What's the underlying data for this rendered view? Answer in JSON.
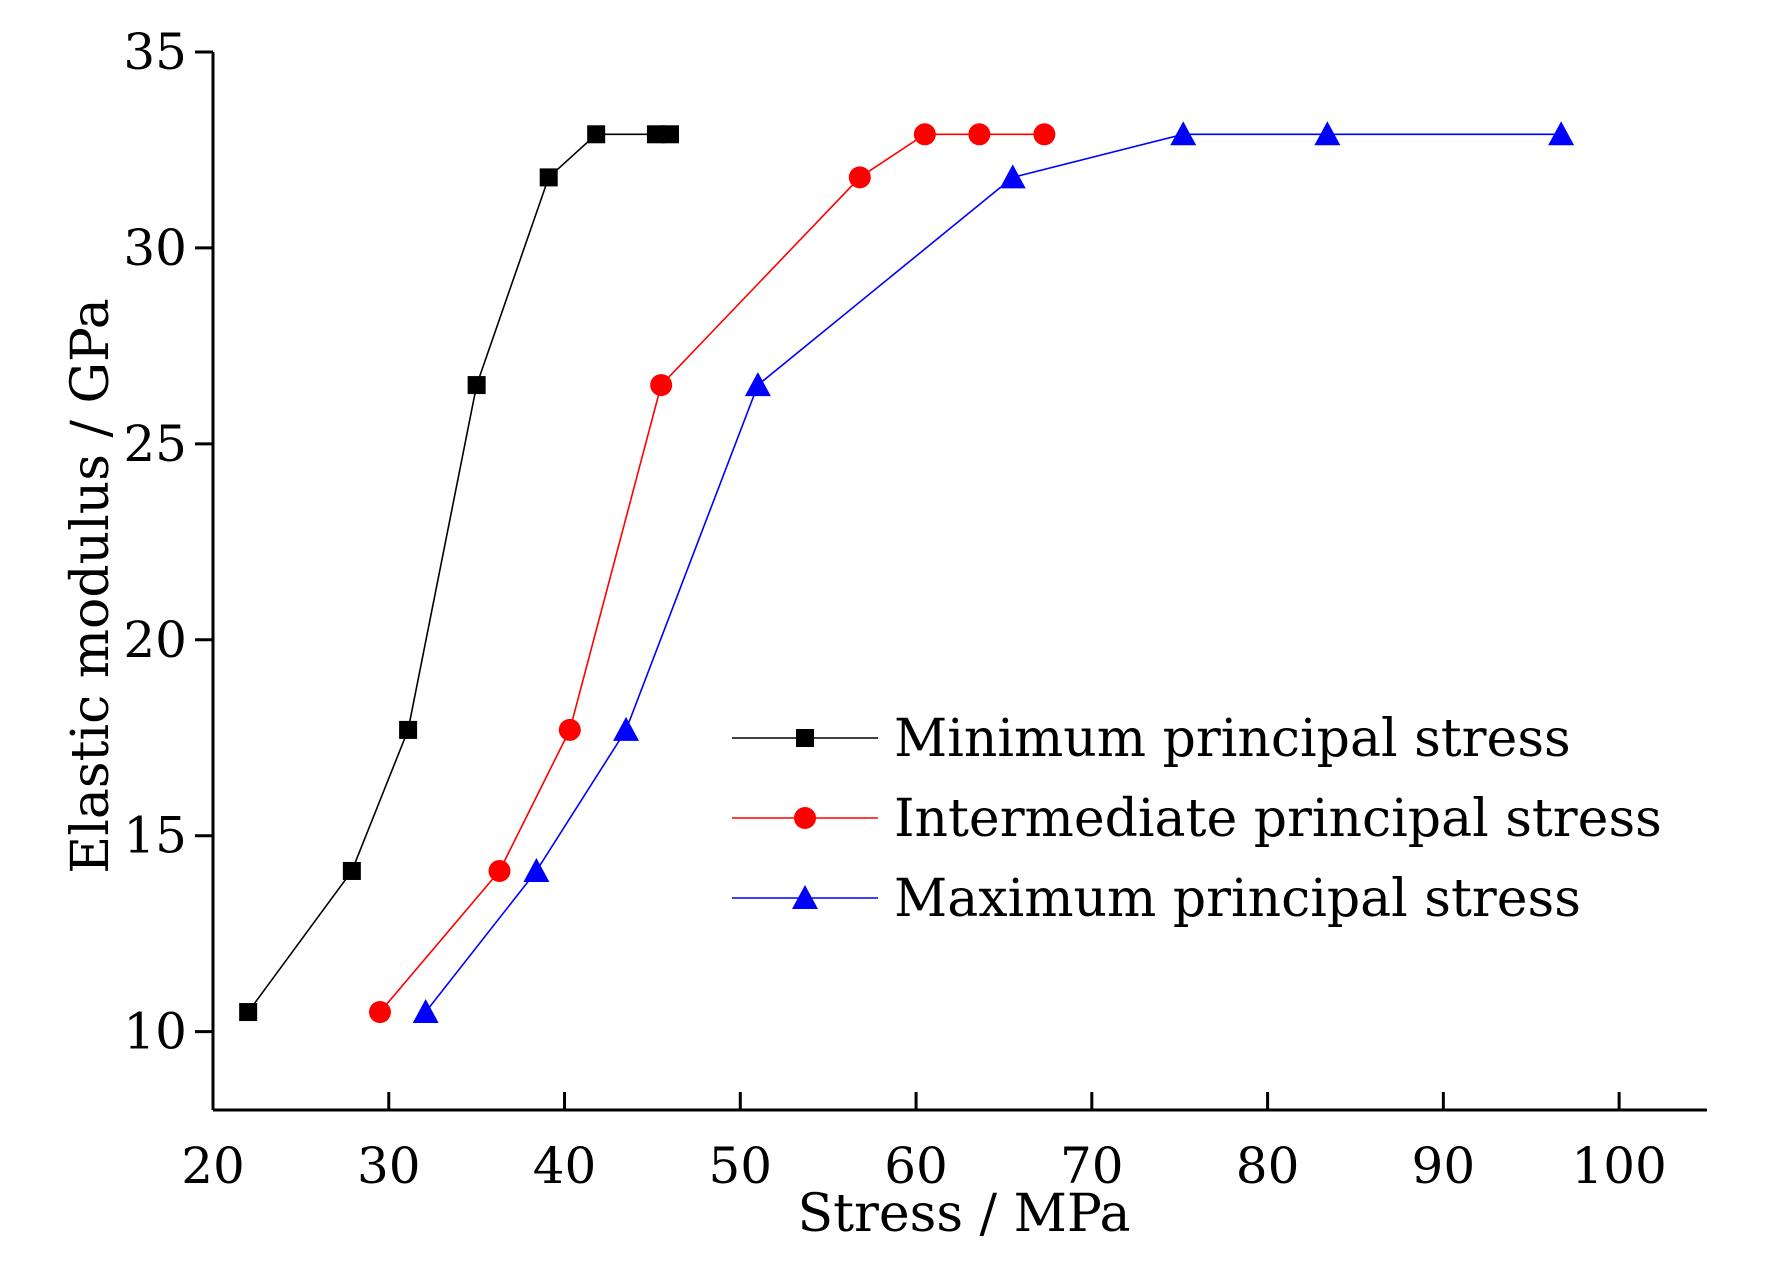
{
  "chart_data": {
    "type": "line",
    "title": "",
    "xlabel": "Stress / MPa",
    "ylabel": "Elastic modulus / GPa",
    "xlim": [
      20,
      105
    ],
    "ylim": [
      8,
      35
    ],
    "xticks": [
      20,
      30,
      40,
      50,
      60,
      70,
      80,
      90,
      100
    ],
    "yticks": [
      10,
      15,
      20,
      25,
      30,
      35
    ],
    "grid": false,
    "legend_position": "center-right",
    "series": [
      {
        "name": "Minimum principal stress",
        "color": "#000000",
        "marker": "square",
        "x": [
          22.0,
          27.9,
          31.1,
          35.0,
          39.1,
          41.8,
          45.2,
          46.0
        ],
        "y": [
          10.5,
          14.1,
          17.7,
          26.5,
          31.8,
          32.9,
          32.9,
          32.9
        ]
      },
      {
        "name": "Intermediate principal stress",
        "color": "#ff0000",
        "marker": "circle",
        "x": [
          29.5,
          36.3,
          40.3,
          45.5,
          56.8,
          60.5,
          63.6,
          67.3
        ],
        "y": [
          10.5,
          14.1,
          17.7,
          26.5,
          31.8,
          32.9,
          32.9,
          32.9
        ]
      },
      {
        "name": "Maximum principal stress",
        "color": "#0000ff",
        "marker": "triangle",
        "x": [
          32.1,
          38.4,
          43.5,
          51.0,
          65.5,
          75.2,
          83.4,
          96.7
        ],
        "y": [
          10.5,
          14.1,
          17.7,
          26.5,
          31.8,
          32.9,
          32.9,
          32.9
        ]
      }
    ]
  }
}
